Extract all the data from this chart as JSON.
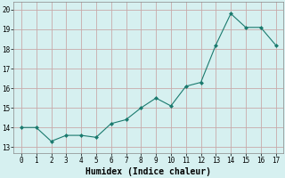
{
  "x": [
    0,
    1,
    2,
    3,
    4,
    5,
    6,
    7,
    8,
    9,
    10,
    11,
    12,
    13,
    14,
    15,
    16,
    17
  ],
  "y": [
    14.0,
    14.0,
    13.3,
    13.6,
    13.6,
    13.5,
    14.2,
    14.4,
    15.0,
    15.5,
    15.1,
    16.1,
    16.3,
    18.2,
    19.8,
    19.1,
    19.1,
    18.2
  ],
  "line_color": "#1a7a6e",
  "marker": "D",
  "marker_size": 2.0,
  "bg_color": "#d6f0f0",
  "grid_color": "#c8aaaa",
  "xlabel": "Humidex (Indice chaleur)",
  "xlabel_fontsize": 7,
  "xtick_fontsize": 5.5,
  "ytick_fontsize": 5.5,
  "xtick_labels": [
    "0",
    "1",
    "2",
    "3",
    "4",
    "5",
    "6",
    "7",
    "8",
    "9",
    "10",
    "11",
    "12",
    "13",
    "14",
    "15",
    "16",
    "17"
  ],
  "ytick_values": [
    13,
    14,
    15,
    16,
    17,
    18,
    19,
    20
  ],
  "ylim": [
    12.7,
    20.4
  ],
  "xlim": [
    -0.5,
    17.5
  ]
}
